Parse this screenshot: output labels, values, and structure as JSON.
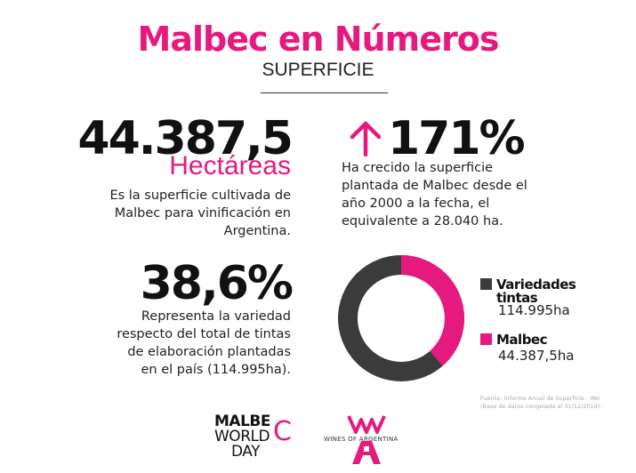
{
  "header": {
    "title": "Malbec en Números",
    "subtitle": "SUPERFICIE"
  },
  "stat_area": {
    "value": "44.387,5",
    "unit": "Hectáreas",
    "description": [
      "Es la superficie cultivada de",
      "Malbec para vinificación en",
      "Argentina."
    ]
  },
  "stat_growth": {
    "arrow_icon": "arrow-up-icon",
    "value": "171%",
    "description": [
      "Ha crecido la superficie",
      "plantada de Malbec desde el",
      "año 2000 a la fecha, el",
      "equivalente a 28.040 ha."
    ]
  },
  "stat_share": {
    "value": "38,6%",
    "description": [
      "Representa la variedad",
      "respecto del total de tintas",
      "de elaboración plantadas",
      "en el país (114.995ha)."
    ]
  },
  "donut": {
    "colors": {
      "variedades": "#3b3b3b",
      "malbec": "#e6197f"
    },
    "malbec_share": 0.386,
    "legend": [
      {
        "label_line1": "Variedades",
        "label_line2": "tintas",
        "value": "114.995ha",
        "color": "#3b3b3b"
      },
      {
        "label_line1": "Malbec",
        "value": "44.387,5ha",
        "color": "#e6197f"
      }
    ]
  },
  "source": {
    "line1": "Fuente: Informe Anual de Superficie - INV",
    "line2": "(Base de datos congelada al 31/12/2019)."
  },
  "logos": {
    "malbec_world_day": {
      "line1": "MALBE",
      "c": "C",
      "line2": "WORLD",
      "line3": "DAY"
    },
    "wines_of_argentina": {
      "text": "WINES OF ARGENTINA",
      "icon": "wines-of-argentina-logo-icon"
    }
  },
  "colors": {
    "accent": "#e6197f",
    "dark": "#3b3b3b"
  }
}
